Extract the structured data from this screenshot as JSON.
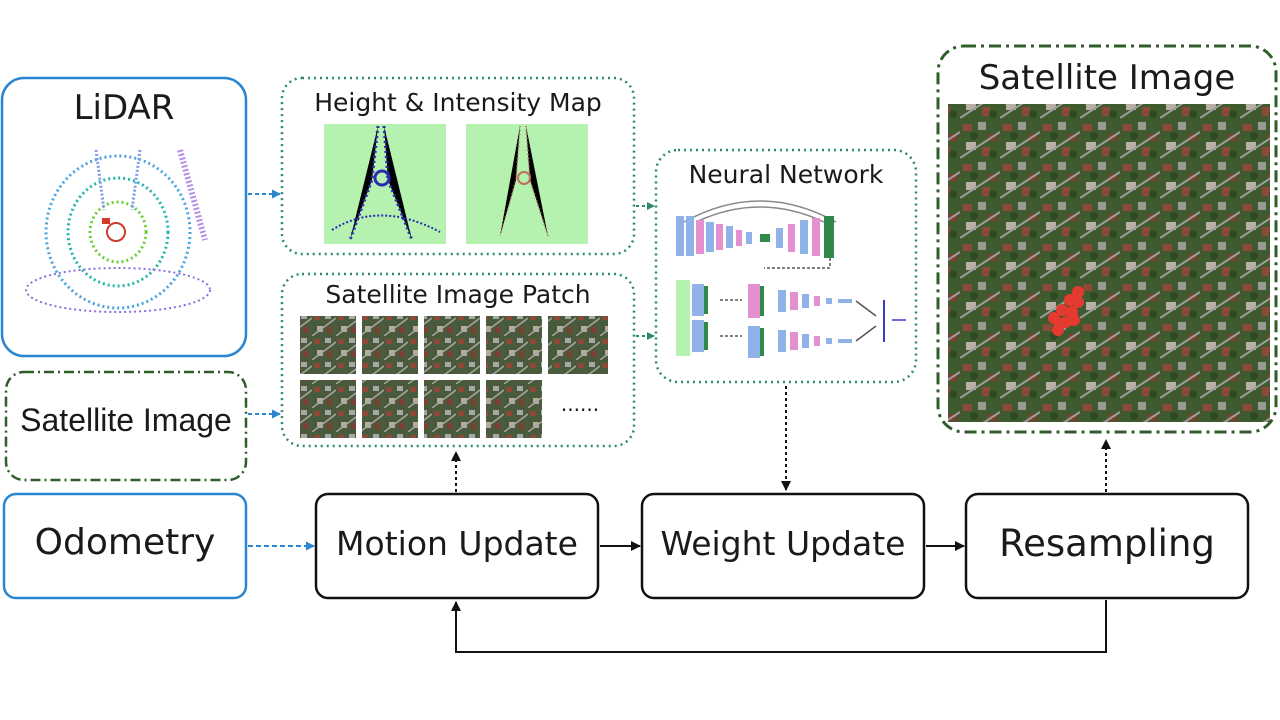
{
  "lidar": {
    "title": "LiDAR"
  },
  "height_map": {
    "title": "Height & Intensity Map"
  },
  "patch": {
    "title": "Satellite Image Patch",
    "ellipsis": "......"
  },
  "sat_input": {
    "label": "Satellite Image"
  },
  "neural": {
    "title": "Neural Network"
  },
  "odometry": {
    "label": "Odometry"
  },
  "motion": {
    "label": "Motion Update"
  },
  "weight": {
    "label": "Weight Update"
  },
  "resample": {
    "label": "Resampling"
  },
  "sat_output": {
    "title": "Satellite Image"
  },
  "colors": {
    "blue": "#2a86d1",
    "green_dotted": "#2a8a70",
    "dark_green": "#2f5e2a",
    "map_bg": "#b5f2b0",
    "particle": "#e53a2f"
  }
}
